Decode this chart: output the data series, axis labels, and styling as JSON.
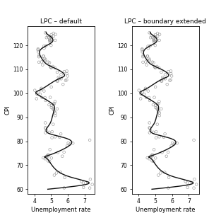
{
  "title_left": "LPC – default",
  "title_right": "LPC – boundary extended",
  "xlabel": "Unemployment rate",
  "ylabel": "CPI",
  "xlim": [
    3.6,
    7.6
  ],
  "ylim": [
    58,
    128
  ],
  "xticks": [
    4,
    5,
    6,
    7
  ],
  "yticks": [
    60,
    70,
    80,
    90,
    100,
    110,
    120
  ],
  "axes_bg": "#ffffff",
  "line_color": "#111111",
  "line_width": 1.0,
  "scatter_size": 7
}
